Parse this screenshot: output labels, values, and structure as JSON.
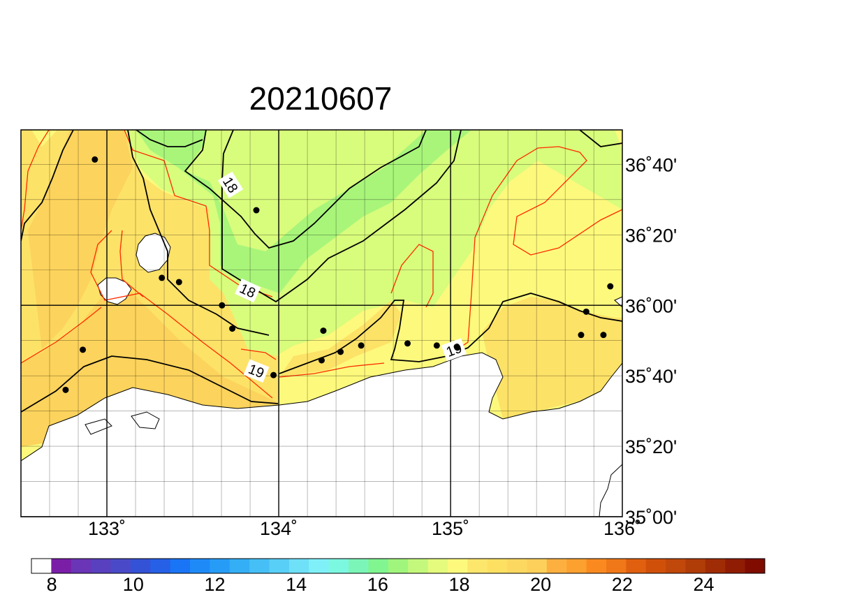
{
  "title": "20210607",
  "map": {
    "lon_range": [
      132.5,
      136.0
    ],
    "lat_range": [
      35.0,
      36.83
    ],
    "lon_ticks": [
      {
        "value": 133,
        "label": "133˚"
      },
      {
        "value": 134,
        "label": "134˚"
      },
      {
        "value": 135,
        "label": "135˚"
      },
      {
        "value": 136,
        "label": "136˚"
      }
    ],
    "lat_ticks": [
      {
        "value": 35.0,
        "label": "35˚00'"
      },
      {
        "value": 35.333,
        "label": "35˚20'"
      },
      {
        "value": 35.667,
        "label": "35˚40'"
      },
      {
        "value": 36.0,
        "label": "36˚00'"
      },
      {
        "value": 36.333,
        "label": "36˚20'"
      },
      {
        "value": 36.667,
        "label": "36˚40'"
      }
    ],
    "grid_minor_deg": 0.1667,
    "grid_major_deg": 0.5,
    "contour_labels": [
      {
        "text": "18",
        "lon": 133.72,
        "lat": 36.57,
        "angle": 58
      },
      {
        "text": "18",
        "lon": 133.82,
        "lat": 36.07,
        "angle": 25
      },
      {
        "text": "19",
        "lon": 133.87,
        "lat": 35.69,
        "angle": 22
      },
      {
        "text": "19",
        "lon": 135.02,
        "lat": 35.79,
        "angle": -20
      }
    ],
    "stations": [
      {
        "lon": 132.93,
        "lat": 36.69
      },
      {
        "lon": 133.87,
        "lat": 36.45
      },
      {
        "lon": 133.32,
        "lat": 36.13
      },
      {
        "lon": 133.42,
        "lat": 36.11
      },
      {
        "lon": 133.67,
        "lat": 36.0
      },
      {
        "lon": 133.73,
        "lat": 35.89
      },
      {
        "lon": 134.26,
        "lat": 35.88
      },
      {
        "lon": 134.36,
        "lat": 35.78
      },
      {
        "lon": 134.48,
        "lat": 35.81
      },
      {
        "lon": 134.25,
        "lat": 35.74
      },
      {
        "lon": 133.97,
        "lat": 35.67
      },
      {
        "lon": 134.75,
        "lat": 35.82
      },
      {
        "lon": 134.92,
        "lat": 35.81
      },
      {
        "lon": 135.04,
        "lat": 35.8
      },
      {
        "lon": 132.86,
        "lat": 35.79
      },
      {
        "lon": 132.76,
        "lat": 35.6
      },
      {
        "lon": 135.76,
        "lat": 35.86
      },
      {
        "lon": 135.89,
        "lat": 35.86
      },
      {
        "lon": 135.79,
        "lat": 35.97
      },
      {
        "lon": 135.93,
        "lat": 36.09
      }
    ],
    "colors": {
      "land": "#ffffff",
      "t_17": "#a8f57a",
      "t_18": "#d8fc7c",
      "t_19": "#fdf97c",
      "t_20": "#fde268",
      "t_20_5": "#fcd35c",
      "contour_black": "#000000",
      "contour_red": "#ff2a00"
    }
  },
  "colorbar": {
    "labels": [
      "8",
      "10",
      "12",
      "14",
      "16",
      "18",
      "20",
      "22",
      "24"
    ],
    "label_values": [
      8,
      10,
      12,
      14,
      16,
      18,
      20,
      22,
      24
    ],
    "min": 7.5,
    "max": 25.5,
    "colors": [
      "#ffffff",
      "#7a1ea8",
      "#6a35b6",
      "#5840be",
      "#4a4ac8",
      "#3452d6",
      "#2560e6",
      "#1a74f6",
      "#1e8af8",
      "#279cf6",
      "#34aef4",
      "#45bff5",
      "#58cff6",
      "#6ee0f7",
      "#80f0f8",
      "#7cf7e0",
      "#7cf6b8",
      "#80f590",
      "#a0f57c",
      "#c4f87c",
      "#e4fb7d",
      "#fdf97c",
      "#fde66c",
      "#fde062",
      "#fdd860",
      "#fcd05b",
      "#fdb040",
      "#fca030",
      "#fa8a20",
      "#f07818",
      "#e06010",
      "#d0500a",
      "#c0480a",
      "#b03c08",
      "#a02c06",
      "#901c04",
      "#800c00"
    ]
  }
}
